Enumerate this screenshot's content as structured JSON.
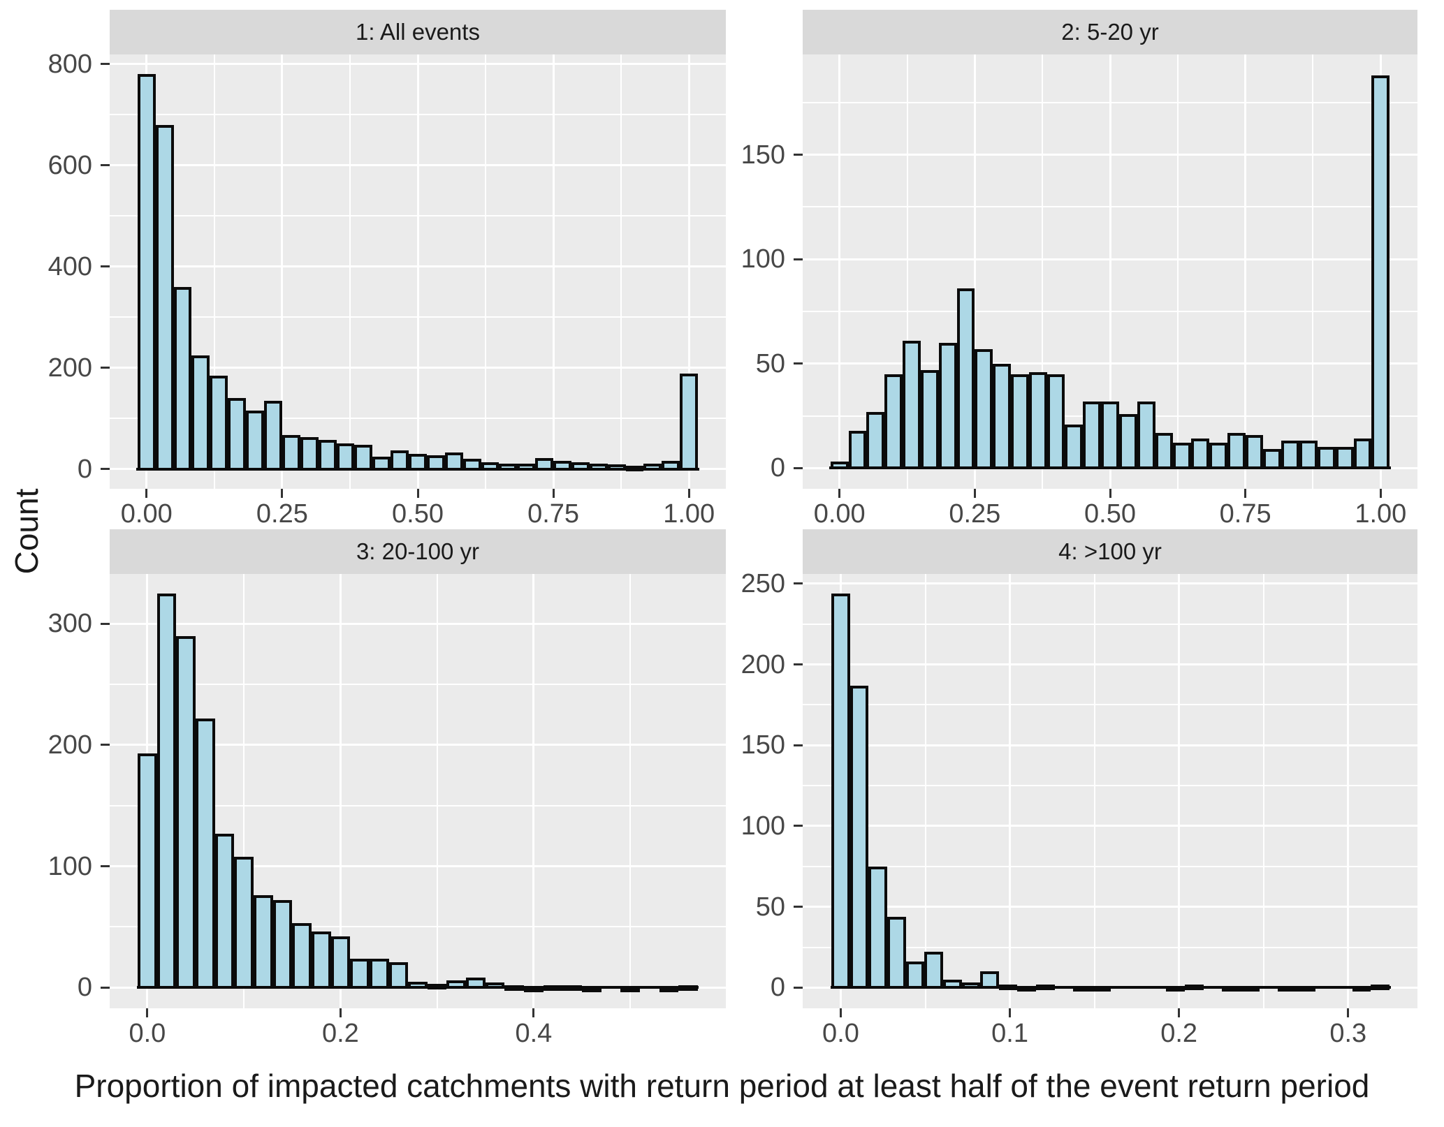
{
  "figure": {
    "x_axis_title": "Proportion of impacted catchments with return period at least half of the event return period",
    "y_axis_title": "Count"
  },
  "colors": {
    "bar_fill": "#ADD8E6",
    "bar_stroke": "#0B0B0B",
    "panel_background": "#EBEBEB",
    "strip_background": "#D9D9D9",
    "gridline": "#FFFFFF",
    "tick_mark": "#333333",
    "tick_label": "#474747",
    "title_text": "#1A1A1A"
  },
  "chart_data": [
    {
      "type": "bar",
      "subtype": "histogram",
      "title": "1: All events",
      "first_center": 0,
      "bin_width": 0.033333,
      "values": [
        780,
        680,
        360,
        225,
        185,
        140,
        115,
        135,
        67,
        63,
        58,
        50,
        48,
        25,
        37,
        30,
        27,
        33,
        21,
        13,
        11,
        10,
        22,
        16,
        13,
        10,
        9,
        7,
        10,
        16,
        188
      ],
      "xlim": [
        -0.068,
        1.068
      ],
      "ylim": [
        -39,
        819
      ],
      "x_ticks": [
        {
          "v": 0,
          "label": "0.00"
        },
        {
          "v": 0.25,
          "label": "0.25"
        },
        {
          "v": 0.5,
          "label": "0.50"
        },
        {
          "v": 0.75,
          "label": "0.75"
        },
        {
          "v": 1,
          "label": "1.00"
        }
      ],
      "x_minor": [
        0.125,
        0.375,
        0.625,
        0.875
      ],
      "y_ticks": [
        {
          "v": 0,
          "label": "0"
        },
        {
          "v": 200,
          "label": "200"
        },
        {
          "v": 400,
          "label": "400"
        },
        {
          "v": 600,
          "label": "600"
        },
        {
          "v": 800,
          "label": "800"
        }
      ],
      "y_minor": [
        100,
        300,
        500,
        700
      ],
      "grid": true,
      "legend": "none"
    },
    {
      "type": "bar",
      "subtype": "histogram",
      "title": "2: 5-20 yr",
      "first_center": 0,
      "bin_width": 0.033333,
      "values": [
        3,
        18,
        27,
        45,
        61,
        47,
        60,
        86,
        57,
        50,
        45,
        46,
        45,
        21,
        32,
        32,
        26,
        32,
        17,
        12,
        14,
        12,
        17,
        16,
        9,
        13,
        13,
        10,
        10,
        14,
        188
      ],
      "xlim": [
        -0.068,
        1.068
      ],
      "ylim": [
        -9.9,
        198
      ],
      "x_ticks": [
        {
          "v": 0,
          "label": "0.00"
        },
        {
          "v": 0.25,
          "label": "0.25"
        },
        {
          "v": 0.5,
          "label": "0.50"
        },
        {
          "v": 0.75,
          "label": "0.75"
        },
        {
          "v": 1,
          "label": "1.00"
        }
      ],
      "x_minor": [
        0.125,
        0.375,
        0.625,
        0.875
      ],
      "y_ticks": [
        {
          "v": 0,
          "label": "0"
        },
        {
          "v": 50,
          "label": "50"
        },
        {
          "v": 100,
          "label": "100"
        },
        {
          "v": 150,
          "label": "150"
        }
      ],
      "y_minor": [
        25,
        75,
        125,
        175
      ],
      "grid": true,
      "legend": "none"
    },
    {
      "type": "bar",
      "subtype": "histogram",
      "title": "3: 20-100 yr",
      "first_center": 0,
      "bin_width": 0.02,
      "values": [
        193,
        325,
        290,
        222,
        127,
        108,
        76,
        72,
        53,
        46,
        42,
        24,
        24,
        21,
        5,
        3,
        6,
        8,
        4,
        2,
        1,
        2,
        2,
        1,
        0,
        1,
        0,
        1,
        2
      ],
      "xlim": [
        -0.039,
        0.599
      ],
      "ylim": [
        -17.1,
        341
      ],
      "x_ticks": [
        {
          "v": 0,
          "label": "0.0"
        },
        {
          "v": 0.2,
          "label": "0.2"
        },
        {
          "v": 0.4,
          "label": "0.4"
        }
      ],
      "x_minor": [
        0.1,
        0.3,
        0.5
      ],
      "y_ticks": [
        {
          "v": 0,
          "label": "0"
        },
        {
          "v": 100,
          "label": "100"
        },
        {
          "v": 200,
          "label": "200"
        },
        {
          "v": 300,
          "label": "300"
        }
      ],
      "y_minor": [
        50,
        150,
        250
      ],
      "grid": true,
      "legend": "none"
    },
    {
      "type": "bar",
      "subtype": "histogram",
      "title": "4: >100 yr",
      "first_center": 0,
      "bin_width": 0.011,
      "values": [
        244,
        187,
        75,
        44,
        16,
        22,
        5,
        3,
        10,
        2,
        1,
        2,
        0,
        1,
        1,
        0,
        0,
        0,
        1,
        2,
        0,
        1,
        1,
        0,
        1,
        1,
        0,
        0,
        1,
        2
      ],
      "xlim": [
        -0.0225,
        0.341
      ],
      "ylim": [
        -12.8,
        256
      ],
      "x_ticks": [
        {
          "v": 0,
          "label": "0.0"
        },
        {
          "v": 0.1,
          "label": "0.1"
        },
        {
          "v": 0.2,
          "label": "0.2"
        },
        {
          "v": 0.3,
          "label": "0.3"
        }
      ],
      "x_minor": [
        0.05,
        0.15,
        0.25
      ],
      "y_ticks": [
        {
          "v": 0,
          "label": "0"
        },
        {
          "v": 50,
          "label": "50"
        },
        {
          "v": 100,
          "label": "100"
        },
        {
          "v": 150,
          "label": "150"
        },
        {
          "v": 200,
          "label": "200"
        },
        {
          "v": 250,
          "label": "250"
        }
      ],
      "y_minor": [
        25,
        75,
        125,
        175,
        225
      ],
      "grid": true,
      "legend": "none"
    }
  ]
}
